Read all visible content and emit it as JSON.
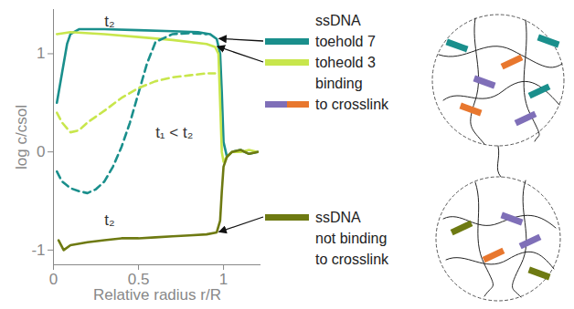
{
  "chart_data": {
    "type": "line",
    "x_label": "Relative radius r/R",
    "y_label": "log c/csol",
    "xlim": [
      0,
      1.22
    ],
    "xticks": [
      0,
      0.5,
      1
    ],
    "ylim": [
      -1.15,
      1.45
    ],
    "yticks": [
      -1,
      0,
      1
    ],
    "grid": false,
    "series": [
      {
        "color": "#1a8f8c",
        "line_style": "solid",
        "x": [
          0.02,
          0.05,
          0.08,
          0.1,
          0.15,
          0.3,
          0.5,
          0.7,
          0.85,
          0.92,
          0.96,
          0.98,
          0.99,
          1.0,
          1.02,
          1.05,
          1.1,
          1.15,
          1.2
        ],
        "values": [
          0.5,
          0.8,
          1.1,
          1.2,
          1.25,
          1.25,
          1.24,
          1.23,
          1.22,
          1.2,
          1.15,
          1.0,
          0.6,
          0.1,
          -0.05,
          0,
          0.02,
          -0.02,
          0
        ]
      },
      {
        "color": "#c8e64c",
        "line_style": "solid",
        "x": [
          0.02,
          0.1,
          0.3,
          0.5,
          0.7,
          0.9,
          0.95,
          0.97,
          0.98,
          0.99,
          1.0,
          1.02,
          1.05,
          1.1,
          1.15,
          1.2
        ],
        "values": [
          1.2,
          1.22,
          1.2,
          1.17,
          1.14,
          1.1,
          1.07,
          1.0,
          0.5,
          0,
          -0.1,
          -0.05,
          0,
          0,
          0.02,
          0
        ]
      },
      {
        "color": "#1a8f8c",
        "line_style": "dashed",
        "x": [
          0.02,
          0.05,
          0.1,
          0.15,
          0.2,
          0.25,
          0.3,
          0.35,
          0.4,
          0.45,
          0.5,
          0.55,
          0.6,
          0.7,
          0.8,
          0.9
        ],
        "values": [
          -0.2,
          -0.3,
          -0.37,
          -0.4,
          -0.42,
          -0.38,
          -0.3,
          -0.15,
          0.05,
          0.3,
          0.6,
          0.9,
          1.12,
          1.2,
          1.21,
          1.2
        ]
      },
      {
        "color": "#c8e64c",
        "line_style": "dashed",
        "x": [
          0.02,
          0.05,
          0.1,
          0.15,
          0.2,
          0.3,
          0.4,
          0.5,
          0.6,
          0.7,
          0.8,
          0.9,
          0.95
        ],
        "values": [
          0.4,
          0.3,
          0.2,
          0.22,
          0.3,
          0.42,
          0.55,
          0.65,
          0.72,
          0.76,
          0.78,
          0.8,
          0.8
        ]
      },
      {
        "color": "#6e7a12",
        "line_style": "solid",
        "x": [
          0.03,
          0.06,
          0.1,
          0.2,
          0.3,
          0.4,
          0.5,
          0.6,
          0.7,
          0.8,
          0.9,
          0.96,
          0.98,
          0.99,
          1.0,
          1.02,
          1.05,
          1.1,
          1.15,
          1.2
        ],
        "values": [
          -0.9,
          -1.0,
          -0.95,
          -0.92,
          -0.9,
          -0.88,
          -0.88,
          -0.87,
          -0.86,
          -0.85,
          -0.84,
          -0.82,
          -0.7,
          -0.4,
          -0.15,
          -0.05,
          0,
          0.02,
          -0.02,
          0
        ]
      }
    ],
    "annotations": [
      {
        "text": "t₂",
        "x": 0.3,
        "y": 1.33
      },
      {
        "text": "t₁ < t₂",
        "x": 0.6,
        "y": 0.2
      },
      {
        "text": "t₂",
        "x": 0.3,
        "y": -0.7
      }
    ],
    "key": [
      [
        {
          "text": "ssDNA"
        },
        {
          "text": "toehold 7",
          "color": "#1a8f8c"
        },
        {
          "text": "toheold 3",
          "color": "#c8e64c"
        },
        {
          "text": "binding"
        },
        {
          "text": "to crosslink",
          "colors": [
            "#7f6fb8",
            "#e8772e"
          ]
        }
      ],
      [
        {
          "text": "ssDNA",
          "color": "#6e7a12"
        },
        {
          "text": "not binding"
        },
        {
          "text": "to crosslink"
        }
      ]
    ]
  }
}
